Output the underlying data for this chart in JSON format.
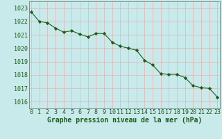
{
  "x": [
    0,
    1,
    2,
    3,
    4,
    5,
    6,
    7,
    8,
    9,
    10,
    11,
    12,
    13,
    14,
    15,
    16,
    17,
    18,
    19,
    20,
    21,
    22,
    23
  ],
  "y": [
    1022.7,
    1022.0,
    1021.9,
    1021.5,
    1021.2,
    1021.3,
    1021.05,
    1020.85,
    1021.1,
    1021.1,
    1020.45,
    1020.15,
    1020.0,
    1019.85,
    1019.1,
    1018.75,
    1018.1,
    1018.05,
    1018.05,
    1017.8,
    1017.2,
    1017.05,
    1017.0,
    1016.35
  ],
  "line_color": "#1a5c1a",
  "marker": "D",
  "marker_size": 2.2,
  "bg_color": "#c8eaea",
  "grid_color": "#e8b0b0",
  "xlabel": "Graphe pression niveau de la mer (hPa)",
  "xlabel_color": "#1a5c1a",
  "xlabel_fontsize": 7,
  "tick_label_color": "#1a5c1a",
  "tick_fontsize": 6,
  "ylim": [
    1015.5,
    1023.5
  ],
  "yticks": [
    1016,
    1017,
    1018,
    1019,
    1020,
    1021,
    1022,
    1023
  ],
  "xticks": [
    0,
    1,
    2,
    3,
    4,
    5,
    6,
    7,
    8,
    9,
    10,
    11,
    12,
    13,
    14,
    15,
    16,
    17,
    18,
    19,
    20,
    21,
    22,
    23
  ],
  "xlim": [
    -0.3,
    23.3
  ]
}
